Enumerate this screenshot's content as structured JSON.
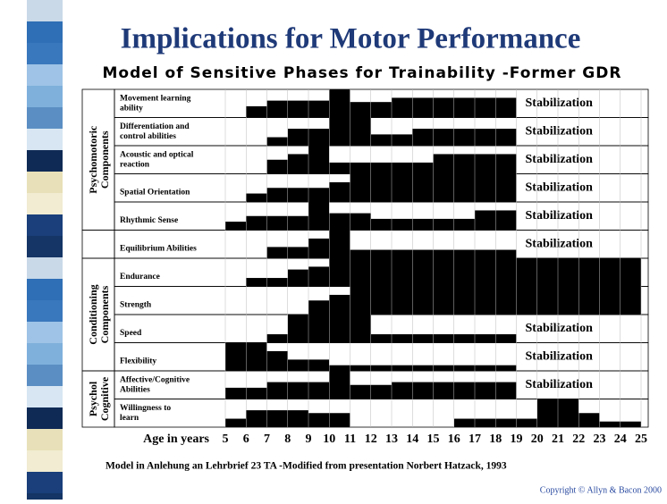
{
  "title": "Implications for Motor Performance",
  "subtitle": "Model of Sensitive Phases for Trainability -Former GDR",
  "groups": [
    {
      "lines": [
        "Psychomotoric",
        "Components"
      ],
      "rows": [
        0,
        4
      ]
    },
    {
      "rows": [
        5,
        5
      ]
    },
    {
      "lines": [
        "Conditioning",
        "Components"
      ],
      "rows": [
        6,
        9
      ]
    },
    {
      "lines": [
        "Psychol",
        "Cognitive"
      ],
      "rows": [
        10,
        11
      ]
    }
  ],
  "rows": [
    {
      "lines": [
        "Movement learning",
        "ability"
      ],
      "note": "Stabilization",
      "bands": [
        [
          6,
          7,
          0.6,
          1
        ],
        [
          7,
          10,
          0.4,
          1
        ],
        [
          10,
          11,
          0,
          1
        ],
        [
          11,
          13,
          0.45,
          1
        ],
        [
          13,
          19,
          0.3,
          1
        ]
      ]
    },
    {
      "lines": [
        "Differentiation and",
        "control abilities"
      ],
      "note": "Stabilization",
      "bands": [
        [
          7,
          8,
          0.7,
          1
        ],
        [
          8,
          10,
          0.4,
          1
        ],
        [
          10,
          12,
          0,
          1
        ],
        [
          12,
          14,
          0.6,
          1
        ],
        [
          14,
          19,
          0.4,
          1
        ]
      ]
    },
    {
      "lines": [
        "Acoustic and optical",
        "reaction"
      ],
      "note": "Stabilization",
      "bands": [
        [
          7,
          8,
          0.5,
          1
        ],
        [
          8,
          9,
          0.3,
          1
        ],
        [
          9,
          10,
          0,
          1
        ],
        [
          10,
          15,
          0.6,
          1
        ],
        [
          15,
          19,
          0.3,
          1
        ]
      ]
    },
    {
      "lines": [
        "Spatial Orientation"
      ],
      "note": "Stabilization",
      "bands": [
        [
          6,
          7,
          0.7,
          1
        ],
        [
          7,
          10,
          0.5,
          1
        ],
        [
          10,
          11,
          0.3,
          1
        ],
        [
          11,
          19,
          0,
          1
        ]
      ]
    },
    {
      "lines": [
        "Rhythmic Sense"
      ],
      "note": "Stabilization",
      "bands": [
        [
          5,
          6,
          0.7,
          1
        ],
        [
          6,
          9,
          0.5,
          1
        ],
        [
          9,
          10,
          0,
          1
        ],
        [
          10,
          12,
          0.4,
          1
        ],
        [
          12,
          17,
          0.6,
          1
        ],
        [
          17,
          19,
          0.3,
          1
        ]
      ]
    },
    {
      "lines": [
        "Equilibrium Abilities"
      ],
      "note": "Stabilization",
      "bands": [
        [
          7,
          9,
          0.6,
          1
        ],
        [
          9,
          10,
          0.3,
          1
        ],
        [
          10,
          11,
          0,
          1
        ],
        [
          11,
          19,
          0.7,
          1
        ]
      ]
    },
    {
      "lines": [
        "Endurance"
      ],
      "bands": [
        [
          6,
          8,
          0.7,
          1
        ],
        [
          8,
          9,
          0.4,
          1
        ],
        [
          9,
          10,
          0.3,
          1
        ],
        [
          10,
          25,
          0,
          1
        ]
      ]
    },
    {
      "lines": [
        "Strength"
      ],
      "bands": [
        [
          9,
          10,
          0.5,
          1
        ],
        [
          10,
          11,
          0.3,
          1
        ],
        [
          11,
          25,
          0,
          1
        ]
      ]
    },
    {
      "lines": [
        "Speed"
      ],
      "note": "Stabilization",
      "bands": [
        [
          7,
          8,
          0.7,
          1
        ],
        [
          8,
          12,
          0,
          1
        ],
        [
          12,
          19,
          0.7,
          1
        ]
      ]
    },
    {
      "lines": [
        "Flexibility"
      ],
      "note": "Stabilization",
      "bands": [
        [
          5,
          7,
          0,
          1
        ],
        [
          7,
          8,
          0.3,
          1
        ],
        [
          8,
          10,
          0.6,
          1
        ],
        [
          10,
          19,
          0.8,
          1
        ]
      ]
    },
    {
      "lines": [
        "Affective/Cognitive",
        "Abilities"
      ],
      "note": "Stabilization",
      "bands": [
        [
          5,
          7,
          0.6,
          1
        ],
        [
          7,
          10,
          0.4,
          1
        ],
        [
          10,
          11,
          0,
          1
        ],
        [
          11,
          13,
          0.5,
          1
        ],
        [
          13,
          19,
          0.4,
          1
        ]
      ]
    },
    {
      "lines": [
        "Willingness to",
        "learn"
      ],
      "bands": [
        [
          5,
          6,
          0.7,
          1
        ],
        [
          6,
          9,
          0.4,
          1
        ],
        [
          9,
          11,
          0.5,
          1
        ],
        [
          16,
          20,
          0.7,
          1
        ],
        [
          20,
          22,
          0,
          1
        ],
        [
          22,
          23,
          0.5,
          1
        ],
        [
          23,
          25,
          0.8,
          1
        ]
      ]
    }
  ],
  "axis_label": "Age in years",
  "ages": [
    5,
    6,
    7,
    8,
    9,
    10,
    11,
    12,
    13,
    14,
    15,
    16,
    17,
    18,
    19,
    20,
    21,
    22,
    23,
    24,
    25
  ],
  "footnote": "Model in Anlehung an Lehrbrief 23 TA -Modified from presentation Norbert Hatzack, 1993",
  "copyright": "Copyright © Allyn & Bacon 2000"
}
